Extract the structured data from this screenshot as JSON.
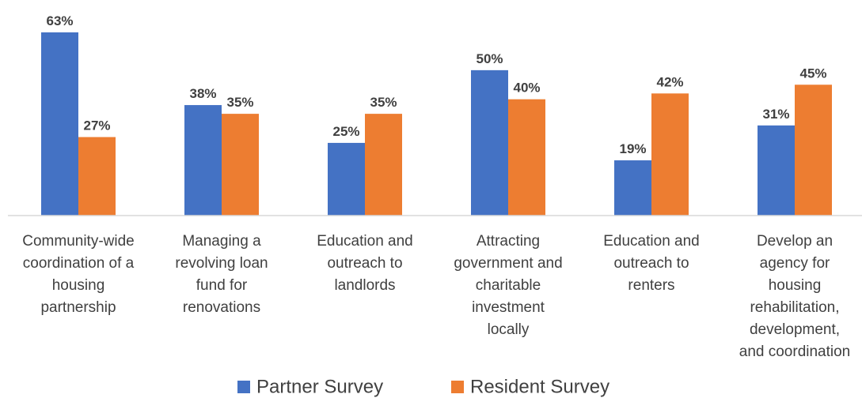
{
  "chart_data": {
    "type": "bar",
    "categories": [
      "Community-wide\ncoordination of a\nhousing\npartnership",
      "Managing a\nrevolving loan\nfund for\nrenovations",
      "Education and\noutreach to\nlandlords",
      "Attracting\ngovernment and\ncharitable\ninvestment\nlocally",
      "Education and\noutreach to\nrenters",
      "Develop an\nagency for\nhousing\nrehabilitation,\ndevelopment,\nand coordination"
    ],
    "series": [
      {
        "name": "Partner Survey",
        "color": "#4472c4",
        "values": [
          63,
          38,
          25,
          50,
          19,
          31
        ],
        "value_labels": [
          "63%",
          "38%",
          "25%",
          "50%",
          "19%",
          "31%"
        ]
      },
      {
        "name": "Resident Survey",
        "color": "#ed7d31",
        "values": [
          27,
          35,
          35,
          40,
          42,
          45
        ],
        "value_labels": [
          "27%",
          "35%",
          "35%",
          "40%",
          "42%",
          "45%"
        ]
      }
    ],
    "legend": "bottom"
  }
}
